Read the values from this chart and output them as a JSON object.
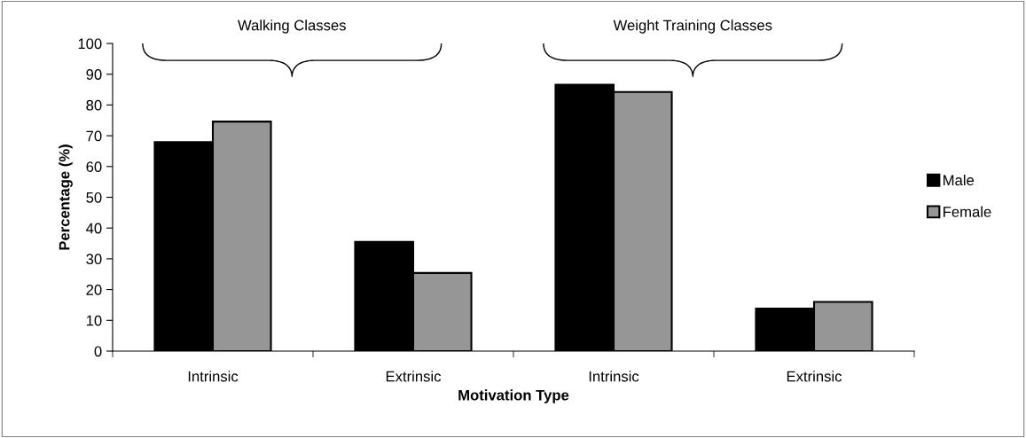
{
  "chart_data": {
    "type": "bar",
    "xlabel": "Motivation Type",
    "ylabel": "Percentage (%)",
    "categories": [
      "Intrinsic",
      "Extrinsic",
      "Intrinsic",
      "Extrinsic"
    ],
    "series": [
      {
        "name": "Male",
        "color": "#000000",
        "values": [
          67.9,
          35.5,
          86.6,
          13.8
        ]
      },
      {
        "name": "Female",
        "color": "#969696",
        "values": [
          74.6,
          25.4,
          84.2,
          16.0
        ]
      }
    ],
    "ylim": [
      0,
      100
    ],
    "yticks": [
      0,
      10,
      20,
      30,
      40,
      50,
      60,
      70,
      80,
      90,
      100
    ],
    "annotations": [
      "Walking Classes",
      "Weight Training Classes"
    ],
    "grid": false,
    "legend": "right"
  }
}
